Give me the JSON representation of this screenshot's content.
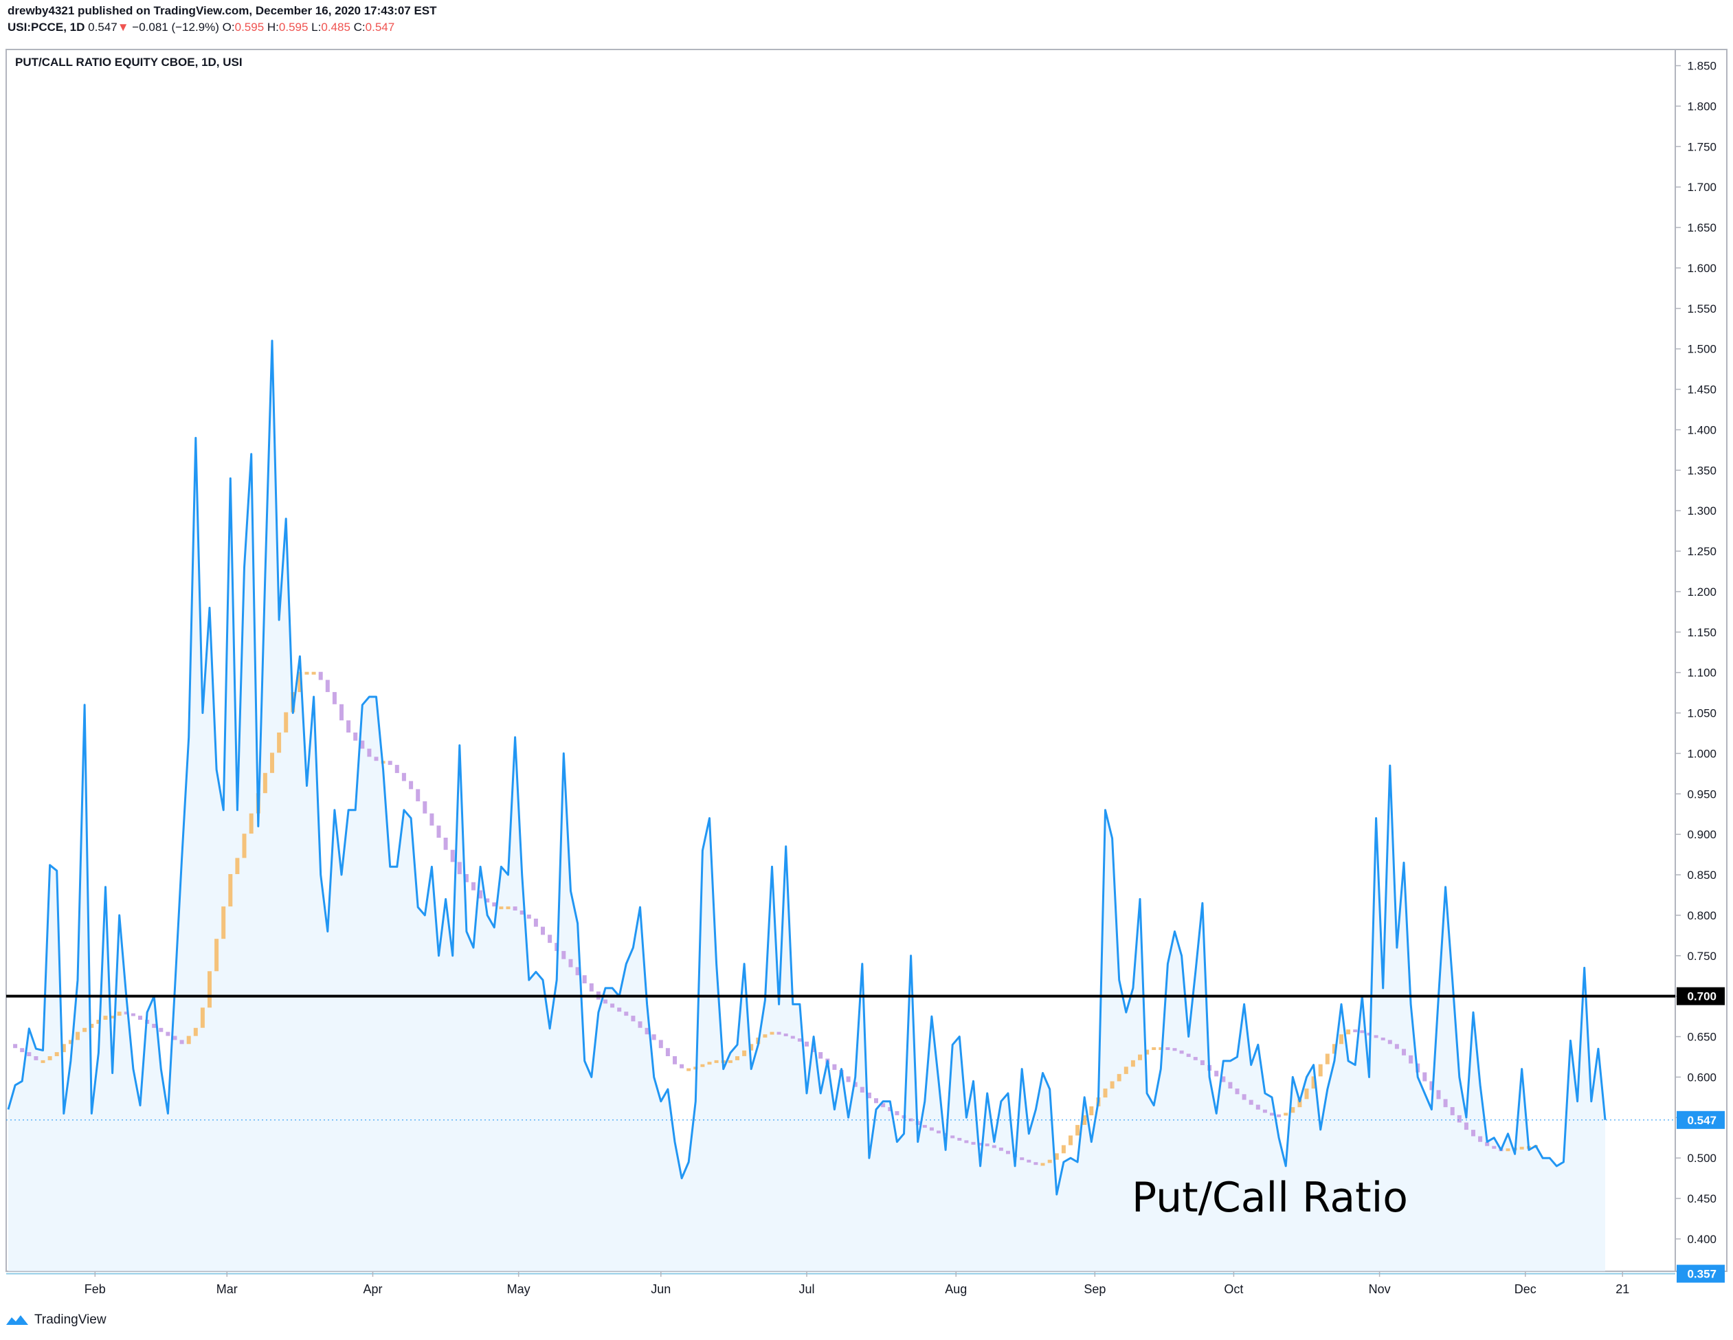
{
  "header": {
    "publisher_line": "drewby4321 published on TradingView.com, December 16, 2020 17:43:07 EST",
    "symbol": "USI:PCCE, 1D",
    "last": "0.547",
    "change": "−0.081 (−12.9%)",
    "o_label": "O:",
    "o_value": "0.595",
    "h_label": "H:",
    "h_value": "0.595",
    "l_label": "L:",
    "l_value": "0.485",
    "c_label": "C:",
    "c_value": "0.547"
  },
  "footer": {
    "brand": "TradingView"
  },
  "colors": {
    "line": "#2196f3",
    "area": "#e3f2fd",
    "ma_up": "#f5c27a",
    "ma_down": "#c9a6e6",
    "ref_line": "#000000",
    "last_label_bg": "#2196f3",
    "low_line": "#8fcbe6"
  },
  "chart_data": {
    "type": "line",
    "title": "PUT/CALL RATIO EQUITY CBOE, 1D, USI",
    "annotation": "Put/Call Ratio",
    "ylim": [
      0.36,
      1.87
    ],
    "y_ticks": [
      "1.850",
      "1.800",
      "1.750",
      "1.700",
      "1.650",
      "1.600",
      "1.550",
      "1.500",
      "1.450",
      "1.400",
      "1.350",
      "1.300",
      "1.250",
      "1.200",
      "1.150",
      "1.100",
      "1.050",
      "1.000",
      "0.950",
      "0.900",
      "0.850",
      "0.800",
      "0.750",
      "0.700",
      "0.650",
      "0.600",
      "0.550",
      "0.500",
      "0.450",
      "0.400"
    ],
    "x_ticks": [
      "Feb",
      "Mar",
      "Apr",
      "May",
      "Jun",
      "Jul",
      "Aug",
      "Sep",
      "Oct",
      "Nov",
      "Dec",
      "21"
    ],
    "x_tick_idx": [
      12.5,
      31.5,
      52.5,
      73.5,
      94,
      115,
      136.5,
      156.5,
      176.5,
      197.5,
      218.5,
      232.5
    ],
    "horizontal_line": {
      "value": 0.7,
      "label": "0.700"
    },
    "last_value": {
      "value": 0.547,
      "label": "0.547"
    },
    "low_line": {
      "value": 0.357,
      "label": "0.357"
    },
    "grid": false,
    "series": [
      {
        "values": [
          0.56,
          0.59,
          0.595,
          0.66,
          0.635,
          0.633,
          0.862,
          0.855,
          0.555,
          0.62,
          0.72,
          1.06,
          0.555,
          0.63,
          0.835,
          0.605,
          0.8,
          0.7,
          0.61,
          0.565,
          0.68,
          0.7,
          0.61,
          0.555,
          0.71,
          0.87,
          1.02,
          1.39,
          1.05,
          1.18,
          0.98,
          0.93,
          1.34,
          0.93,
          1.23,
          1.37,
          0.91,
          1.22,
          1.51,
          1.165,
          1.29,
          1.05,
          1.12,
          0.96,
          1.07,
          0.85,
          0.78,
          0.93,
          0.85,
          0.93,
          0.93,
          1.06,
          1.07,
          1.07,
          0.98,
          0.86,
          0.86,
          0.93,
          0.92,
          0.81,
          0.8,
          0.86,
          0.75,
          0.82,
          0.75,
          1.01,
          0.78,
          0.76,
          0.86,
          0.8,
          0.785,
          0.86,
          0.85,
          1.02,
          0.85,
          0.72,
          0.73,
          0.72,
          0.66,
          0.72,
          1.0,
          0.83,
          0.79,
          0.62,
          0.6,
          0.68,
          0.71,
          0.71,
          0.7,
          0.74,
          0.76,
          0.81,
          0.69,
          0.6,
          0.57,
          0.585,
          0.52,
          0.475,
          0.495,
          0.57,
          0.88,
          0.92,
          0.74,
          0.61,
          0.63,
          0.64,
          0.74,
          0.61,
          0.64,
          0.695,
          0.86,
          0.69,
          0.885,
          0.69,
          0.69,
          0.58,
          0.65,
          0.58,
          0.62,
          0.56,
          0.61,
          0.55,
          0.6,
          0.74,
          0.5,
          0.56,
          0.57,
          0.57,
          0.52,
          0.53,
          0.75,
          0.52,
          0.57,
          0.675,
          0.595,
          0.51,
          0.64,
          0.65,
          0.55,
          0.595,
          0.49,
          0.58,
          0.52,
          0.57,
          0.58,
          0.49,
          0.61,
          0.53,
          0.56,
          0.605,
          0.585,
          0.455,
          0.495,
          0.5,
          0.495,
          0.575,
          0.52,
          0.57,
          0.93,
          0.895,
          0.72,
          0.68,
          0.71,
          0.82,
          0.58,
          0.565,
          0.61,
          0.74,
          0.78,
          0.75,
          0.65,
          0.73,
          0.815,
          0.6,
          0.555,
          0.62,
          0.62,
          0.625,
          0.69,
          0.615,
          0.64,
          0.58,
          0.575,
          0.525,
          0.49,
          0.6,
          0.57,
          0.6,
          0.615,
          0.535,
          0.585,
          0.62,
          0.69,
          0.62,
          0.615,
          0.7,
          0.6,
          0.92,
          0.71,
          0.985,
          0.76,
          0.865,
          0.69,
          0.6,
          0.58,
          0.56,
          0.7,
          0.835,
          0.72,
          0.6,
          0.55,
          0.68,
          0.59,
          0.52,
          0.525,
          0.51,
          0.53,
          0.505,
          0.61,
          0.51,
          0.515,
          0.5,
          0.5,
          0.49,
          0.495,
          0.645,
          0.57,
          0.735,
          0.57,
          0.635,
          0.547
        ]
      }
    ],
    "moving_average": {
      "values": [
        0.64,
        0.635,
        0.63,
        0.625,
        0.62,
        0.62,
        0.625,
        0.63,
        0.64,
        0.645,
        0.655,
        0.66,
        0.665,
        0.67,
        0.675,
        0.675,
        0.68,
        0.678,
        0.675,
        0.67,
        0.665,
        0.66,
        0.655,
        0.65,
        0.645,
        0.64,
        0.65,
        0.66,
        0.685,
        0.73,
        0.77,
        0.81,
        0.85,
        0.87,
        0.9,
        0.925,
        0.95,
        0.975,
        1.0,
        1.025,
        1.05,
        1.075,
        1.1,
        1.1,
        1.1,
        1.09,
        1.075,
        1.06,
        1.04,
        1.025,
        1.015,
        1.005,
        0.995,
        0.99,
        0.99,
        0.985,
        0.975,
        0.965,
        0.955,
        0.94,
        0.925,
        0.91,
        0.895,
        0.88,
        0.865,
        0.85,
        0.84,
        0.83,
        0.82,
        0.815,
        0.81,
        0.81,
        0.81,
        0.805,
        0.8,
        0.795,
        0.785,
        0.775,
        0.765,
        0.755,
        0.745,
        0.735,
        0.725,
        0.715,
        0.705,
        0.695,
        0.69,
        0.685,
        0.68,
        0.675,
        0.668,
        0.66,
        0.652,
        0.645,
        0.635,
        0.625,
        0.615,
        0.61,
        0.61,
        0.612,
        0.615,
        0.618,
        0.62,
        0.62,
        0.62,
        0.625,
        0.632,
        0.64,
        0.648,
        0.652,
        0.655,
        0.653,
        0.65,
        0.647,
        0.643,
        0.637,
        0.63,
        0.622,
        0.615,
        0.608,
        0.6,
        0.593,
        0.587,
        0.58,
        0.573,
        0.567,
        0.562,
        0.557,
        0.552,
        0.548,
        0.545,
        0.54,
        0.537,
        0.533,
        0.53,
        0.527,
        0.524,
        0.521,
        0.519,
        0.518,
        0.517,
        0.515,
        0.512,
        0.508,
        0.504,
        0.5,
        0.497,
        0.494,
        0.492,
        0.493,
        0.497,
        0.505,
        0.515,
        0.527,
        0.54,
        0.552,
        0.563,
        0.574,
        0.585,
        0.594,
        0.603,
        0.612,
        0.62,
        0.627,
        0.633,
        0.636,
        0.636,
        0.635,
        0.632,
        0.628,
        0.624,
        0.62,
        0.614,
        0.607,
        0.6,
        0.593,
        0.585,
        0.578,
        0.571,
        0.565,
        0.559,
        0.555,
        0.553,
        0.552,
        0.555,
        0.562,
        0.572,
        0.585,
        0.6,
        0.615,
        0.628,
        0.64,
        0.652,
        0.658,
        0.657,
        0.654,
        0.651,
        0.648,
        0.645,
        0.64,
        0.634,
        0.626,
        0.616,
        0.605,
        0.594,
        0.583,
        0.572,
        0.562,
        0.552,
        0.543,
        0.534,
        0.526,
        0.519,
        0.514,
        0.511,
        0.51,
        0.511,
        0.512,
        0.513,
        0.514,
        0.515
      ]
    }
  }
}
